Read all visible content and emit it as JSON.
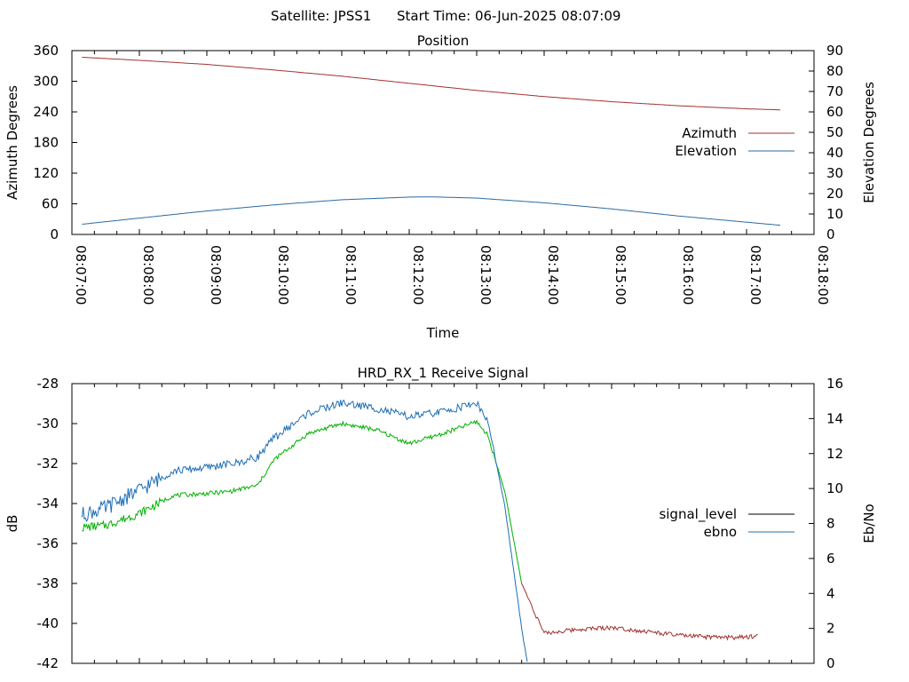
{
  "header": {
    "satellite": "Satellite: JPSS1",
    "start_time": "Start Time: 06-Jun-2025 08:07:09"
  },
  "colors": {
    "azimuth": "#a0302f",
    "elevation": "#2a6aa0",
    "signal_level": "#a0302f",
    "ebno": "#1e6fb5",
    "signal_level_mid": "#00b000",
    "legend_signal": "#000000",
    "legend_ebno": "#1e6fb5"
  },
  "chart_data": [
    {
      "type": "line",
      "title": "Position",
      "xlabel": "Time",
      "ylabel": "Azimuth Degrees",
      "y2label": "Elevation Degrees",
      "xlim": [
        "08:07:00",
        "08:18:00"
      ],
      "xticks": [
        "08:07:00",
        "08:08:00",
        "08:09:00",
        "08:10:00",
        "08:11:00",
        "08:12:00",
        "08:13:00",
        "08:14:00",
        "08:15:00",
        "08:16:00",
        "08:17:00",
        "08:18:00"
      ],
      "ylim": [
        0,
        360
      ],
      "yticks": [
        "0",
        "60",
        "120",
        "180",
        "240",
        "300",
        "360"
      ],
      "y2lim": [
        0,
        90
      ],
      "y2ticks": [
        "0",
        "10",
        "20",
        "30",
        "40",
        "50",
        "60",
        "70",
        "80",
        "90"
      ],
      "legend_position": "right",
      "series": [
        {
          "name": "Azimuth",
          "axis": "y",
          "x": [
            "08:07:09",
            "08:08:00",
            "08:09:00",
            "08:10:00",
            "08:11:00",
            "08:12:00",
            "08:13:00",
            "08:14:00",
            "08:15:00",
            "08:16:00",
            "08:17:00",
            "08:17:30"
          ],
          "values": [
            347,
            341,
            333,
            322,
            310,
            296,
            282,
            270,
            260,
            252,
            246,
            244
          ]
        },
        {
          "name": "Elevation",
          "axis": "y2",
          "x": [
            "08:07:09",
            "08:08:00",
            "08:09:00",
            "08:10:00",
            "08:11:00",
            "08:12:00",
            "08:12:20",
            "08:13:00",
            "08:14:00",
            "08:15:00",
            "08:16:00",
            "08:17:00",
            "08:17:30"
          ],
          "values": [
            5,
            8,
            11.5,
            14.5,
            17,
            18.3,
            18.4,
            17.8,
            15.5,
            12.5,
            9,
            6,
            4.5
          ]
        }
      ]
    },
    {
      "type": "line",
      "title": "HRD_RX_1 Receive Signal",
      "xlabel": "",
      "ylabel": "dB",
      "y2label": "Eb/No",
      "xlim": [
        "08:07:00",
        "08:18:00"
      ],
      "ylim": [
        -42,
        -28
      ],
      "yticks": [
        "-28",
        "-30",
        "-32",
        "-34",
        "-36",
        "-38",
        "-40",
        "-42"
      ],
      "y2lim": [
        0,
        16
      ],
      "y2ticks": [
        "0",
        "2",
        "4",
        "6",
        "8",
        "10",
        "12",
        "14",
        "16"
      ],
      "legend_position": "right",
      "series": [
        {
          "name": "signal_level",
          "axis": "y",
          "x": [
            "08:07:09",
            "08:07:30",
            "08:08:00",
            "08:08:30",
            "08:09:00",
            "08:09:20",
            "08:09:45",
            "08:10:00",
            "08:10:30",
            "08:11:00",
            "08:11:30",
            "08:12:00",
            "08:12:30",
            "08:13:00",
            "08:13:10",
            "08:13:25",
            "08:13:40",
            "08:14:00",
            "08:14:30",
            "08:15:00",
            "08:15:30",
            "08:16:00",
            "08:16:30",
            "08:17:00",
            "08:17:10"
          ],
          "values": [
            -35.2,
            -35.1,
            -34.5,
            -33.6,
            -33.5,
            -33.4,
            -33.1,
            -31.8,
            -30.5,
            -30.0,
            -30.3,
            -31.0,
            -30.5,
            -29.9,
            -30.6,
            -33.4,
            -38.0,
            -40.5,
            -40.3,
            -40.2,
            -40.4,
            -40.6,
            -40.7,
            -40.7,
            -40.6
          ]
        },
        {
          "name": "ebno",
          "axis": "y2",
          "x": [
            "08:07:09",
            "08:07:30",
            "08:08:00",
            "08:08:30",
            "08:09:00",
            "08:09:30",
            "08:09:45",
            "08:10:00",
            "08:10:30",
            "08:11:00",
            "08:11:30",
            "08:12:00",
            "08:12:30",
            "08:13:00",
            "08:13:10",
            "08:13:25",
            "08:13:40",
            "08:13:45"
          ],
          "values": [
            8.5,
            8.9,
            9.9,
            11.0,
            11.2,
            11.5,
            11.8,
            12.9,
            14.3,
            14.9,
            14.6,
            14.1,
            14.4,
            14.9,
            13.8,
            9.0,
            2.0,
            0
          ]
        }
      ]
    }
  ]
}
